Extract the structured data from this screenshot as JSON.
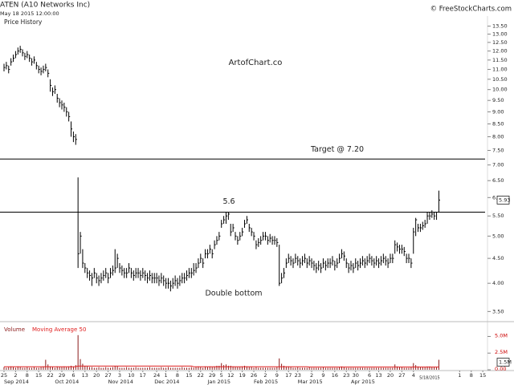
{
  "chart_data": {
    "type": "ohlc",
    "title": "ATEN (A10 Networks Inc)",
    "subtitle": "May 18 2015 12:00:00",
    "panel_label": "Price History",
    "source": "© FreeStockCharts.com",
    "watermark": "ArtofChart.co",
    "color": "#000000",
    "yscale": "log",
    "ylim": [
      3.4,
      14
    ],
    "yticks": [
      {
        "value": 13.5,
        "label": "13.50"
      },
      {
        "value": 13,
        "label": "13.00"
      },
      {
        "value": 12.5,
        "label": "12.50"
      },
      {
        "value": 12,
        "label": "12.00"
      },
      {
        "value": 11.5,
        "label": "11.50"
      },
      {
        "value": 11,
        "label": "11.00"
      },
      {
        "value": 10.5,
        "label": "10.50"
      },
      {
        "value": 10,
        "label": "10.00"
      },
      {
        "value": 9.5,
        "label": "9.50"
      },
      {
        "value": 9,
        "label": "9.00"
      },
      {
        "value": 8.5,
        "label": "8.50"
      },
      {
        "value": 8,
        "label": "8.00"
      },
      {
        "value": 7.5,
        "label": "7.50"
      },
      {
        "value": 7,
        "label": "7.00"
      },
      {
        "value": 6.5,
        "label": "6.50"
      },
      {
        "value": 6,
        "label": "6.00"
      },
      {
        "value": 5.5,
        "label": "5.50"
      },
      {
        "value": 5,
        "label": "5.00"
      },
      {
        "value": 4.5,
        "label": "4.50"
      },
      {
        "value": 4,
        "label": "4.00"
      },
      {
        "value": 3.5,
        "label": "3.50"
      }
    ],
    "xlim": [
      -1,
      221
    ],
    "xticks": [
      {
        "value": 0,
        "label": "25"
      },
      {
        "value": 5,
        "label": "2"
      },
      {
        "value": 10,
        "label": "8"
      },
      {
        "value": 15,
        "label": "15"
      },
      {
        "value": 20,
        "label": "22"
      },
      {
        "value": 25,
        "label": "29"
      },
      {
        "value": 30,
        "label": "6"
      },
      {
        "value": 35,
        "label": "13"
      },
      {
        "value": 40,
        "label": "20"
      },
      {
        "value": 45,
        "label": "27"
      },
      {
        "value": 50,
        "label": "3"
      },
      {
        "value": 55,
        "label": "10"
      },
      {
        "value": 60,
        "label": "17"
      },
      {
        "value": 66,
        "label": "24"
      },
      {
        "value": 70,
        "label": "1"
      },
      {
        "value": 75,
        "label": "8"
      },
      {
        "value": 80,
        "label": "15"
      },
      {
        "value": 85,
        "label": "22"
      },
      {
        "value": 90,
        "label": "29"
      },
      {
        "value": 94,
        "label": "5"
      },
      {
        "value": 98,
        "label": "12"
      },
      {
        "value": 103,
        "label": "19"
      },
      {
        "value": 108,
        "label": "26"
      },
      {
        "value": 113,
        "label": "2"
      },
      {
        "value": 118,
        "label": "9"
      },
      {
        "value": 123,
        "label": "17"
      },
      {
        "value": 127,
        "label": "23"
      },
      {
        "value": 133,
        "label": "2"
      },
      {
        "value": 138,
        "label": "9"
      },
      {
        "value": 143,
        "label": "16"
      },
      {
        "value": 148,
        "label": "23"
      },
      {
        "value": 152,
        "label": "30"
      },
      {
        "value": 158,
        "label": "6"
      },
      {
        "value": 162,
        "label": "13"
      },
      {
        "value": 167,
        "label": "20"
      },
      {
        "value": 172,
        "label": "27"
      },
      {
        "value": 177,
        "label": "4"
      },
      {
        "value": 197,
        "label": "1"
      },
      {
        "value": 202,
        "label": "8"
      },
      {
        "value": 207,
        "label": "15"
      }
    ],
    "month_labels": [
      {
        "value": 0,
        "label": "Sep 2014"
      },
      {
        "value": 22,
        "label": "Oct 2014"
      },
      {
        "value": 45,
        "label": "Nov 2014"
      },
      {
        "value": 65,
        "label": "Dec 2014"
      },
      {
        "value": 88,
        "label": "Jan 2015"
      },
      {
        "value": 108,
        "label": "Feb 2015"
      },
      {
        "value": 127,
        "label": "Mar 2015"
      },
      {
        "value": 150,
        "label": "Apr 2015"
      }
    ],
    "last_date": {
      "value": 184,
      "label": "5/18/2015"
    },
    "annotations": [
      {
        "text": "Target @ 7.20",
        "value": 7.2
      },
      {
        "text": "5.6",
        "value": 5.6
      },
      {
        "text": "Double bottom"
      }
    ],
    "close": [
      11.1,
      11.2,
      11.0,
      11.4,
      11.6,
      11.8,
      12.0,
      12.1,
      11.9,
      11.7,
      11.8,
      11.6,
      11.4,
      11.5,
      11.2,
      11.0,
      10.9,
      11.0,
      11.1,
      10.8,
      10.2,
      9.9,
      10.0,
      9.6,
      9.4,
      9.3,
      9.2,
      9.0,
      8.8,
      8.3,
      8.0,
      7.9,
      4.6,
      5.0,
      4.4,
      4.3,
      4.2,
      4.15,
      4.1,
      4.2,
      4.1,
      4.05,
      4.1,
      4.15,
      4.2,
      4.1,
      4.2,
      4.25,
      4.3,
      4.5,
      4.3,
      4.25,
      4.2,
      4.2,
      4.3,
      4.2,
      4.15,
      4.2,
      4.2,
      4.15,
      4.2,
      4.15,
      4.1,
      4.15,
      4.1,
      4.1,
      4.1,
      4.05,
      4.1,
      4.05,
      4.0,
      4.0,
      3.95,
      4.0,
      4.05,
      4.0,
      4.05,
      4.1,
      4.1,
      4.15,
      4.2,
      4.2,
      4.25,
      4.3,
      4.4,
      4.5,
      4.4,
      4.6,
      4.6,
      4.7,
      4.6,
      4.8,
      4.9,
      5.0,
      5.3,
      5.4,
      5.5,
      5.55,
      5.1,
      5.2,
      5.0,
      4.9,
      5.0,
      5.1,
      5.3,
      5.4,
      5.2,
      5.1,
      5.0,
      4.8,
      4.85,
      4.9,
      5.0,
      5.0,
      4.9,
      4.95,
      4.9,
      4.9,
      4.85,
      4.0,
      4.1,
      4.2,
      4.4,
      4.5,
      4.45,
      4.4,
      4.5,
      4.45,
      4.4,
      4.45,
      4.5,
      4.4,
      4.45,
      4.4,
      4.35,
      4.3,
      4.35,
      4.3,
      4.4,
      4.35,
      4.4,
      4.4,
      4.45,
      4.35,
      4.4,
      4.5,
      4.6,
      4.55,
      4.4,
      4.3,
      4.35,
      4.3,
      4.4,
      4.35,
      4.4,
      4.45,
      4.4,
      4.45,
      4.5,
      4.45,
      4.4,
      4.45,
      4.4,
      4.45,
      4.5,
      4.45,
      4.4,
      4.5,
      4.5,
      4.8,
      4.75,
      4.7,
      4.7,
      4.65,
      4.5,
      4.5,
      4.4,
      5.1,
      5.4,
      5.2,
      5.2,
      5.25,
      5.3,
      5.5,
      5.5,
      5.55,
      5.5,
      5.6,
      5.93
    ],
    "high": [
      11.3,
      11.4,
      11.2,
      11.6,
      11.8,
      12.0,
      12.2,
      12.3,
      12.1,
      11.9,
      12.0,
      11.8,
      11.6,
      11.7,
      11.4,
      11.2,
      11.1,
      11.2,
      11.3,
      11.0,
      10.5,
      10.1,
      10.2,
      9.8,
      9.6,
      9.5,
      9.4,
      9.2,
      9.0,
      8.6,
      8.2,
      8.1,
      6.6,
      5.1,
      4.7,
      4.4,
      4.3,
      4.25,
      4.2,
      4.3,
      4.2,
      4.15,
      4.2,
      4.25,
      4.3,
      4.2,
      4.3,
      4.35,
      4.7,
      4.6,
      4.4,
      4.35,
      4.3,
      4.3,
      4.4,
      4.3,
      4.25,
      4.3,
      4.3,
      4.25,
      4.3,
      4.25,
      4.2,
      4.25,
      4.2,
      4.2,
      4.2,
      4.15,
      4.2,
      4.15,
      4.1,
      4.1,
      4.05,
      4.1,
      4.15,
      4.1,
      4.15,
      4.2,
      4.2,
      4.25,
      4.3,
      4.3,
      4.4,
      4.4,
      4.5,
      4.6,
      4.5,
      4.7,
      4.7,
      4.8,
      4.7,
      4.9,
      5.0,
      5.1,
      5.4,
      5.5,
      5.6,
      5.6,
      5.3,
      5.3,
      5.1,
      5.0,
      5.1,
      5.2,
      5.4,
      5.5,
      5.3,
      5.2,
      5.1,
      4.9,
      4.95,
      5.0,
      5.1,
      5.1,
      5.0,
      5.05,
      5.0,
      5.0,
      4.95,
      4.8,
      4.2,
      4.3,
      4.5,
      4.6,
      4.55,
      4.5,
      4.6,
      4.55,
      4.5,
      4.55,
      4.6,
      4.5,
      4.55,
      4.5,
      4.45,
      4.4,
      4.45,
      4.4,
      4.5,
      4.45,
      4.5,
      4.5,
      4.55,
      4.45,
      4.5,
      4.6,
      4.7,
      4.65,
      4.5,
      4.4,
      4.45,
      4.4,
      4.5,
      4.45,
      4.5,
      4.55,
      4.5,
      4.55,
      4.6,
      4.55,
      4.5,
      4.55,
      4.5,
      4.55,
      4.6,
      4.55,
      4.5,
      4.6,
      4.6,
      4.9,
      4.85,
      4.8,
      4.8,
      4.75,
      4.6,
      4.6,
      4.5,
      5.2,
      5.45,
      5.3,
      5.3,
      5.35,
      5.4,
      5.6,
      5.6,
      5.65,
      5.6,
      5.6,
      6.2
    ],
    "low": [
      10.9,
      11.0,
      10.8,
      11.2,
      11.4,
      11.6,
      11.8,
      11.9,
      11.7,
      11.5,
      11.6,
      11.4,
      11.2,
      11.3,
      11.0,
      10.8,
      10.7,
      10.8,
      10.9,
      10.6,
      9.9,
      9.7,
      9.8,
      9.4,
      9.2,
      9.1,
      9.0,
      8.8,
      8.6,
      8.0,
      7.8,
      7.7,
      4.3,
      4.6,
      4.3,
      4.2,
      4.1,
      4.05,
      3.95,
      4.1,
      4.0,
      3.95,
      4.0,
      4.05,
      4.1,
      4.0,
      4.1,
      4.15,
      4.2,
      4.3,
      4.2,
      4.15,
      4.1,
      4.1,
      4.2,
      4.1,
      4.05,
      4.1,
      4.1,
      4.05,
      4.1,
      4.05,
      4.0,
      4.05,
      4.0,
      4.0,
      4.0,
      3.95,
      4.0,
      3.95,
      3.9,
      3.9,
      3.85,
      3.9,
      3.95,
      3.9,
      3.95,
      4.0,
      4.0,
      4.05,
      4.1,
      4.1,
      4.15,
      4.2,
      4.3,
      4.4,
      4.3,
      4.5,
      4.5,
      4.6,
      4.5,
      4.7,
      4.8,
      4.9,
      5.2,
      5.3,
      5.3,
      5.4,
      5.0,
      5.1,
      4.9,
      4.8,
      4.9,
      5.0,
      5.2,
      5.3,
      5.1,
      5.0,
      4.9,
      4.7,
      4.75,
      4.8,
      4.9,
      4.9,
      4.8,
      4.85,
      4.8,
      4.8,
      4.75,
      3.95,
      4.0,
      4.1,
      4.3,
      4.4,
      4.35,
      4.3,
      4.4,
      4.35,
      4.3,
      4.35,
      4.4,
      4.3,
      4.35,
      4.3,
      4.25,
      4.2,
      4.25,
      4.2,
      4.3,
      4.25,
      4.3,
      4.3,
      4.35,
      4.25,
      4.3,
      4.4,
      4.5,
      4.45,
      4.3,
      4.2,
      4.25,
      4.2,
      4.3,
      4.25,
      4.3,
      4.35,
      4.3,
      4.35,
      4.4,
      4.35,
      4.3,
      4.35,
      4.3,
      4.35,
      4.4,
      4.35,
      4.3,
      4.4,
      4.4,
      4.6,
      4.65,
      4.6,
      4.6,
      4.55,
      4.4,
      4.4,
      4.3,
      4.6,
      5.0,
      5.1,
      5.1,
      5.15,
      5.2,
      5.3,
      5.4,
      5.45,
      5.4,
      5.4,
      5.6
    ],
    "volume": {
      "name": "Volume",
      "color": "#8b1a1a",
      "ylim": [
        0,
        6.5
      ],
      "yticks": [
        {
          "value": 0,
          "label": "0.00"
        },
        {
          "value": 2.5,
          "label": "2.5M"
        },
        {
          "value": 5,
          "label": "5.0M"
        }
      ],
      "last_label": "1.5M",
      "values": [
        0.4,
        0.3,
        0.4,
        0.5,
        0.4,
        0.3,
        0.5,
        0.4,
        0.3,
        0.3,
        0.4,
        0.3,
        0.3,
        0.4,
        0.3,
        0.3,
        0.4,
        0.5,
        1.5,
        0.8,
        0.5,
        0.4,
        0.3,
        0.5,
        0.4,
        0.4,
        0.5,
        0.4,
        0.5,
        0.6,
        0.5,
        0.7,
        5.2,
        1.6,
        0.9,
        0.6,
        0.5,
        0.4,
        0.4,
        0.3,
        0.3,
        0.4,
        0.3,
        0.3,
        0.4,
        0.3,
        0.3,
        0.4,
        0.6,
        0.5,
        0.3,
        0.3,
        0.3,
        0.4,
        0.3,
        0.3,
        0.3,
        0.4,
        0.3,
        0.3,
        0.3,
        0.3,
        0.3,
        0.4,
        0.3,
        0.3,
        0.3,
        0.3,
        0.4,
        0.3,
        0.3,
        0.4,
        0.3,
        0.3,
        0.3,
        0.3,
        0.3,
        0.4,
        0.3,
        0.3,
        0.3,
        0.4,
        0.3,
        0.4,
        0.5,
        0.4,
        0.3,
        0.5,
        0.4,
        0.5,
        0.4,
        0.5,
        0.6,
        0.6,
        1.0,
        0.7,
        0.8,
        0.6,
        0.6,
        0.5,
        0.4,
        0.4,
        0.4,
        0.5,
        0.6,
        0.5,
        0.4,
        0.4,
        0.3,
        0.4,
        0.3,
        0.3,
        0.3,
        0.3,
        0.3,
        0.3,
        0.3,
        0.3,
        0.4,
        1.7,
        0.9,
        0.6,
        0.5,
        0.5,
        0.4,
        0.3,
        0.3,
        0.4,
        0.3,
        0.3,
        0.3,
        0.3,
        0.4,
        0.3,
        0.3,
        0.3,
        0.3,
        0.3,
        0.4,
        0.3,
        0.3,
        0.3,
        0.3,
        0.3,
        0.3,
        0.4,
        0.5,
        0.4,
        0.3,
        0.3,
        0.3,
        0.3,
        0.3,
        0.3,
        0.3,
        0.3,
        0.3,
        0.3,
        0.3,
        0.3,
        0.3,
        0.3,
        0.3,
        0.3,
        0.3,
        0.3,
        0.3,
        0.3,
        0.3,
        0.8,
        0.5,
        0.4,
        0.4,
        0.3,
        0.3,
        0.3,
        0.4,
        1.0,
        0.7,
        0.5,
        0.4,
        0.4,
        0.4,
        0.5,
        0.5,
        0.4,
        0.4,
        0.4,
        1.5
      ]
    },
    "moving_average": {
      "name": "Moving Average 50",
      "color": "#e02020",
      "values": [
        0.45,
        0.45,
        0.45,
        0.45,
        0.45,
        0.45,
        0.45,
        0.45,
        0.45,
        0.45,
        0.45,
        0.45,
        0.45,
        0.45,
        0.45,
        0.45,
        0.45,
        0.45,
        0.45,
        0.45,
        0.45,
        0.45,
        0.45,
        0.45,
        0.45,
        0.45,
        0.45,
        0.45,
        0.45,
        0.45,
        0.45,
        0.45,
        0.55,
        0.55,
        0.55,
        0.55,
        0.55,
        0.55,
        0.55,
        0.55,
        0.55,
        0.55,
        0.55,
        0.55,
        0.55,
        0.55,
        0.55,
        0.55,
        0.55,
        0.55,
        0.55,
        0.55,
        0.55,
        0.55,
        0.55,
        0.55,
        0.55,
        0.55,
        0.55,
        0.55,
        0.55,
        0.55,
        0.55,
        0.55,
        0.55,
        0.55,
        0.55,
        0.55,
        0.55,
        0.55,
        0.55,
        0.55,
        0.55,
        0.55,
        0.55,
        0.55,
        0.55,
        0.55,
        0.55,
        0.55,
        0.55,
        0.55,
        0.45,
        0.45,
        0.45,
        0.45,
        0.45,
        0.45,
        0.45,
        0.45,
        0.45,
        0.45,
        0.45,
        0.45,
        0.45,
        0.45,
        0.45,
        0.45,
        0.45,
        0.45,
        0.45,
        0.45,
        0.45,
        0.45,
        0.45,
        0.45,
        0.45,
        0.45,
        0.45,
        0.45,
        0.45,
        0.45,
        0.45,
        0.45,
        0.45,
        0.45,
        0.45,
        0.45,
        0.45,
        0.45,
        0.45,
        0.45,
        0.45,
        0.45,
        0.45,
        0.45,
        0.45,
        0.45,
        0.45,
        0.45,
        0.45,
        0.45,
        0.4,
        0.4,
        0.4,
        0.4,
        0.4,
        0.4,
        0.4,
        0.4,
        0.4,
        0.4,
        0.4,
        0.4,
        0.4,
        0.4,
        0.4,
        0.4,
        0.4,
        0.4,
        0.4,
        0.4,
        0.4,
        0.4,
        0.4,
        0.4,
        0.4,
        0.4,
        0.4,
        0.4,
        0.4,
        0.4,
        0.4,
        0.4,
        0.4,
        0.4,
        0.4,
        0.4,
        0.4,
        0.4,
        0.4,
        0.4,
        0.4,
        0.4,
        0.4,
        0.4,
        0.4,
        0.4,
        0.4,
        0.4,
        0.4,
        0.4,
        0.4,
        0.4,
        0.4,
        0.4,
        0.4,
        0.4,
        0.4
      ]
    }
  }
}
